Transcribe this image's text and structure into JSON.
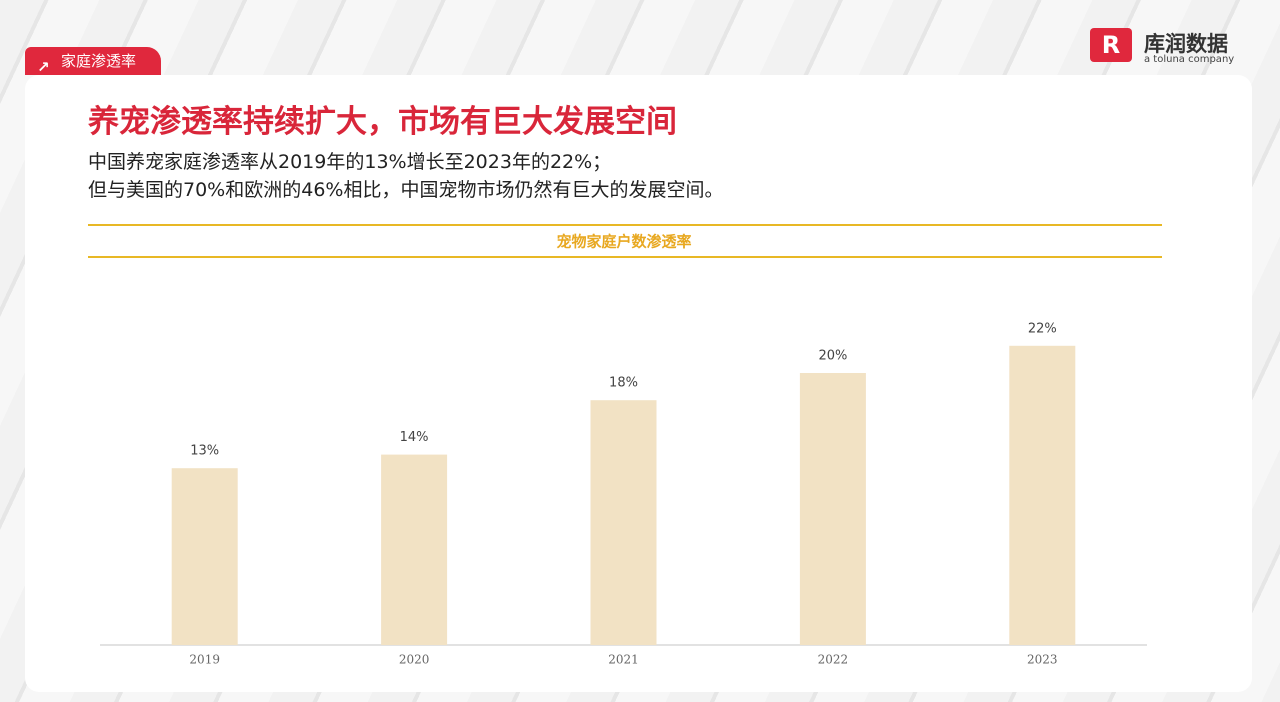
{
  "header": {
    "tag": "家庭渗透率",
    "logo": "库润数据",
    "logo_sub": "a toluna company"
  },
  "title": "养宠渗透率持续扩大，市场有巨大发展空间",
  "subtitle": [
    "中国养宠家庭渗透率从2019年的13%增长至2023年的22%；",
    "但与美国的70%和欧洲的46%相比，中国宠物市场仍然有巨大的发展空间。"
  ],
  "chart_data": {
    "type": "bar",
    "title": "宠物家庭户数渗透率",
    "categories": [
      "2019",
      "2020",
      "2021",
      "2022",
      "2023"
    ],
    "values": [
      13,
      14,
      18,
      20,
      22
    ],
    "value_labels": [
      "13%",
      "14%",
      "18%",
      "20%",
      "22%"
    ],
    "color": "#f2e2c4"
  }
}
